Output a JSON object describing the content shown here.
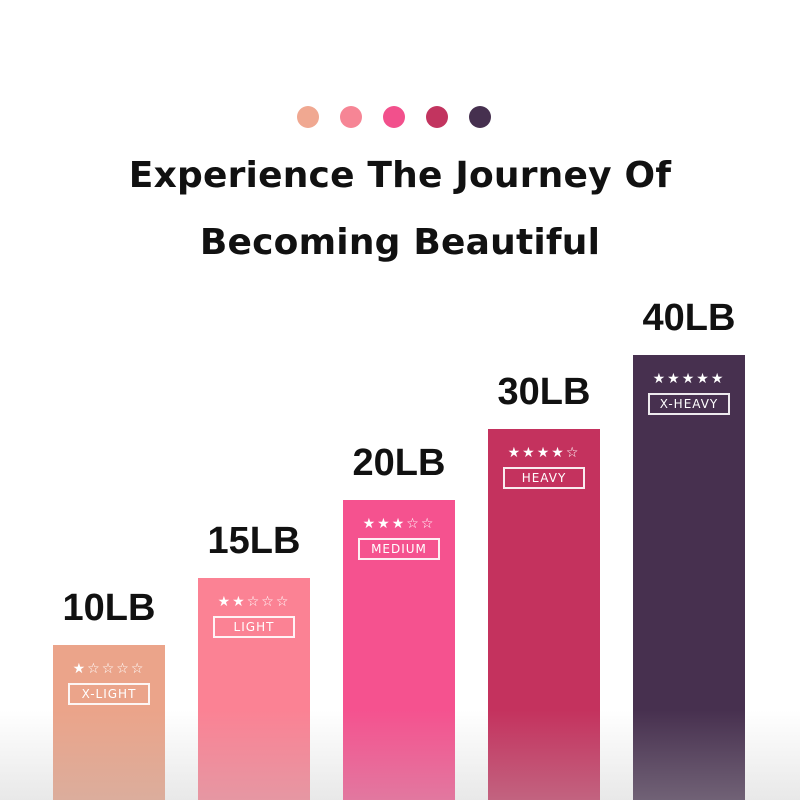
{
  "dots": [
    {
      "color": "#f0a891"
    },
    {
      "color": "#f68595"
    },
    {
      "color": "#f2508c"
    },
    {
      "color": "#c2345f"
    },
    {
      "color": "#46304f"
    }
  ],
  "title": {
    "line1": "Experience The Journey Of",
    "line2": "Becoming Beautiful"
  },
  "bands": [
    {
      "weight": "10LB",
      "stars": "★☆☆☆☆",
      "rating": 1,
      "level": "X-LIGHT",
      "color": "#eba48a"
    },
    {
      "weight": "15LB",
      "stars": "★★☆☆☆",
      "rating": 2,
      "level": "LIGHT",
      "color": "#fb8294"
    },
    {
      "weight": "20LB",
      "stars": "★★★☆☆",
      "rating": 3,
      "level": "MEDIUM",
      "color": "#f5528f"
    },
    {
      "weight": "30LB",
      "stars": "★★★★☆",
      "rating": 4,
      "level": "HEAVY",
      "color": "#c4325e"
    },
    {
      "weight": "40LB",
      "stars": "★★★★★",
      "rating": 5,
      "level": "X-HEAVY",
      "color": "#47304f"
    }
  ]
}
